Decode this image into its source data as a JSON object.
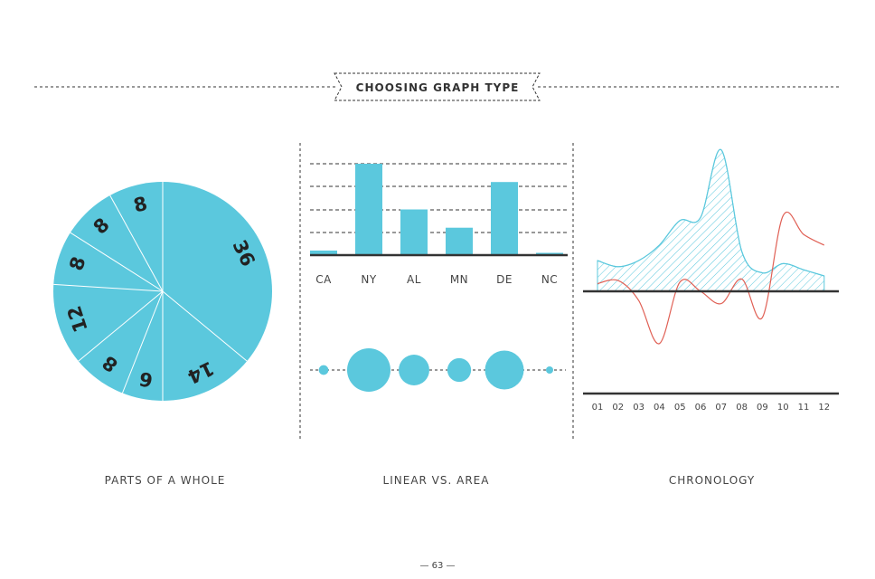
{
  "header": {
    "title": "CHOOSING GRAPH TYPE"
  },
  "captions": {
    "parts": "PARTS OF A WHOLE",
    "linear": "LINEAR VS. AREA",
    "chrono": "CHRONOLOGY"
  },
  "page_number": "— 63 —",
  "colors": {
    "accent": "#5bc8dd",
    "line": "#e06055",
    "ink": "#333333"
  },
  "chart_data": [
    {
      "type": "pie",
      "title": "PARTS OF A WHOLE",
      "labels": [
        "36",
        "14",
        "6",
        "8",
        "12",
        "8",
        "8",
        "8"
      ],
      "values": [
        36,
        14,
        6,
        8,
        12,
        8,
        8,
        8
      ]
    },
    {
      "type": "bar",
      "title": "LINEAR VS. AREA",
      "categories": [
        "CA",
        "NY",
        "AL",
        "MN",
        "DE",
        "NC"
      ],
      "values": [
        2,
        40,
        20,
        12,
        32,
        1
      ]
    },
    {
      "type": "scatter",
      "title": "LINEAR VS. AREA",
      "categories": [
        "CA",
        "NY",
        "AL",
        "MN",
        "DE",
        "NC"
      ],
      "values": [
        2,
        40,
        20,
        12,
        32,
        1
      ],
      "encoding": "circle area"
    },
    {
      "type": "area",
      "title": "CHRONOLOGY",
      "x": [
        "01",
        "02",
        "03",
        "04",
        "05",
        "06",
        "07",
        "08",
        "09",
        "10",
        "11",
        "12"
      ],
      "series": [
        {
          "values": [
            2,
            1.6,
            2.0,
            3.0,
            4.6,
            4.8,
            9.2,
            2.6,
            1.2,
            1.8,
            1.4,
            1.0
          ]
        },
        {
          "values": [
            0.5,
            0.7,
            -0.6,
            -3.4,
            0.6,
            0.0,
            -0.8,
            0.8,
            -1.7,
            4.9,
            3.7,
            3.0
          ]
        }
      ]
    }
  ]
}
